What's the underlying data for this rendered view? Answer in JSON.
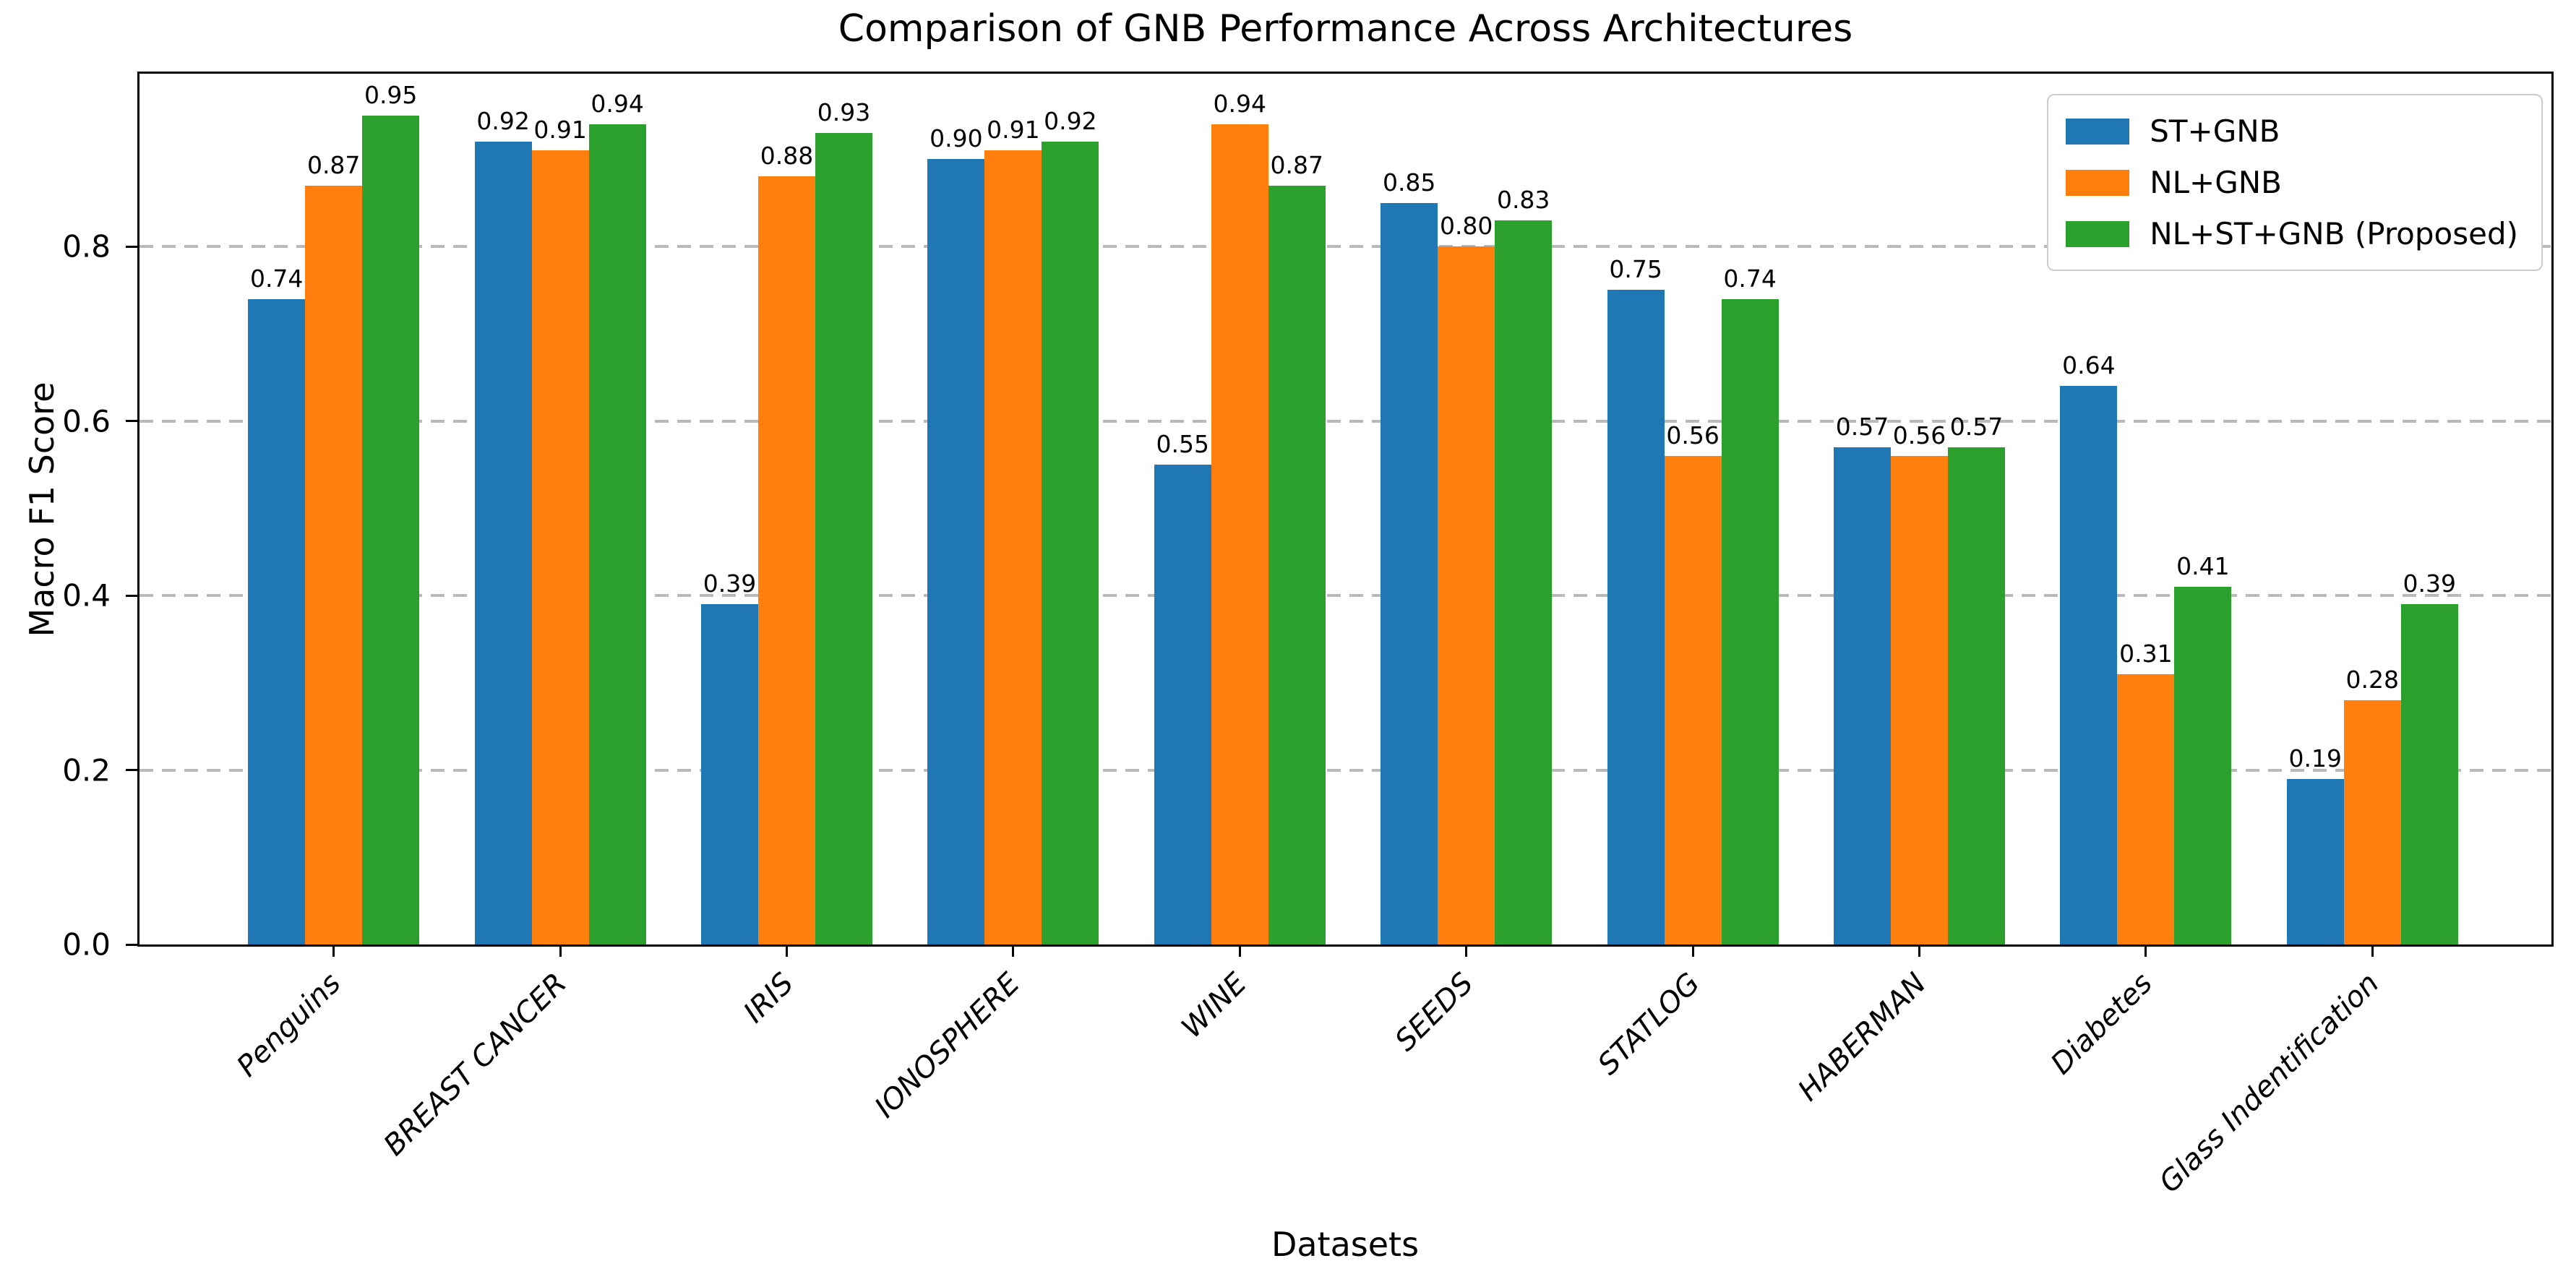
{
  "chart_data": {
    "type": "bar",
    "title": "Comparison of GNB Performance Across Architectures",
    "xlabel": "Datasets",
    "ylabel": "Macro F1 Score",
    "categories": [
      "Penguins",
      "BREAST CANCER",
      "IRIS",
      "IONOSPHERE",
      "WINE",
      "SEEDS",
      "STATLOG",
      "HABERMAN",
      "Diabetes",
      "Glass Indentification"
    ],
    "series": [
      {
        "name": "ST+GNB",
        "color": "#1f77b4",
        "values": [
          0.74,
          0.92,
          0.39,
          0.9,
          0.55,
          0.85,
          0.75,
          0.57,
          0.64,
          0.19
        ]
      },
      {
        "name": "NL+GNB",
        "color": "#ff7f0e",
        "values": [
          0.87,
          0.91,
          0.88,
          0.91,
          0.94,
          0.8,
          0.56,
          0.56,
          0.31,
          0.28
        ]
      },
      {
        "name": "NL+ST+GNB (Proposed)",
        "color": "#2ca02c",
        "values": [
          0.95,
          0.94,
          0.93,
          0.92,
          0.87,
          0.83,
          0.74,
          0.57,
          0.41,
          0.39
        ]
      }
    ],
    "ylim": [
      0,
      0.998
    ],
    "yticks": [
      0.0,
      0.2,
      0.4,
      0.6,
      0.8
    ],
    "ytick_labels": [
      "0.0",
      "0.2",
      "0.4",
      "0.6",
      "0.8"
    ],
    "grid": "horizontal-dashed",
    "grid_color": "#b9b9b9",
    "legend_position": "upper-right",
    "value_label_format": "2-decimals"
  }
}
